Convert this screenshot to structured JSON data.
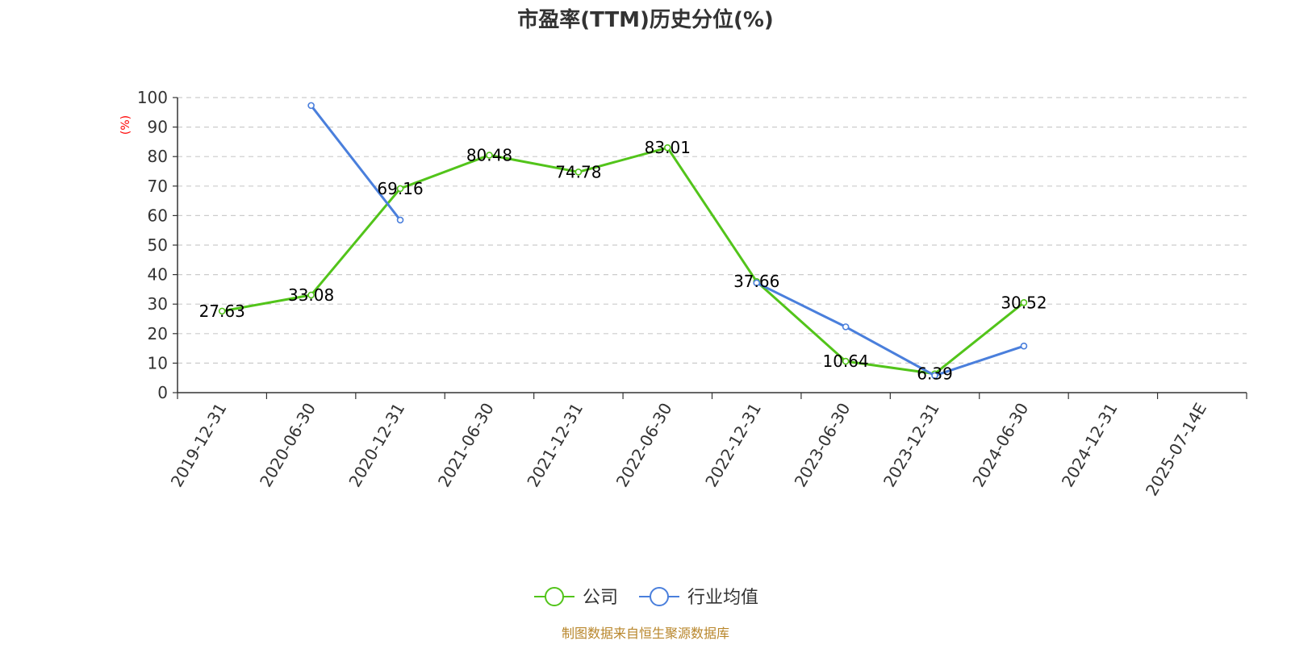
{
  "chart_data": {
    "type": "line",
    "title": "市盈率(TTM)历史分位(%)",
    "ylabel": "(%)",
    "xlabel": "",
    "ylim": [
      0,
      100
    ],
    "yticks": [
      "0",
      "10",
      "20",
      "30",
      "40",
      "50",
      "60",
      "70",
      "80",
      "90",
      "100"
    ],
    "categories": [
      "2019-12-31",
      "2020-06-30",
      "2020-12-31",
      "2021-06-30",
      "2021-12-31",
      "2022-06-30",
      "2022-12-31",
      "2023-06-30",
      "2023-12-31",
      "2024-06-30",
      "2024-12-31",
      "2025-07-14E"
    ],
    "grid": true,
    "legend_position": "bottom-center",
    "series": [
      {
        "name": "公司",
        "color": "#52c41a",
        "values": [
          27.63,
          33.08,
          69.16,
          80.48,
          74.78,
          83.01,
          37.66,
          10.64,
          6.39,
          30.52,
          null,
          null
        ],
        "labels": [
          "27.63",
          "33.08",
          "69.16",
          "80.48",
          "74.78",
          "83.01",
          "37.66",
          "10.64",
          "6.39",
          "30.52",
          "",
          ""
        ]
      },
      {
        "name": "行业均值",
        "color": "#4a7fdc",
        "values": [
          null,
          97.3,
          58.5,
          null,
          null,
          null,
          37.2,
          22.3,
          5.8,
          15.8,
          null,
          null
        ],
        "labels": []
      }
    ],
    "source": "制图数据来自恒生聚源数据库"
  }
}
